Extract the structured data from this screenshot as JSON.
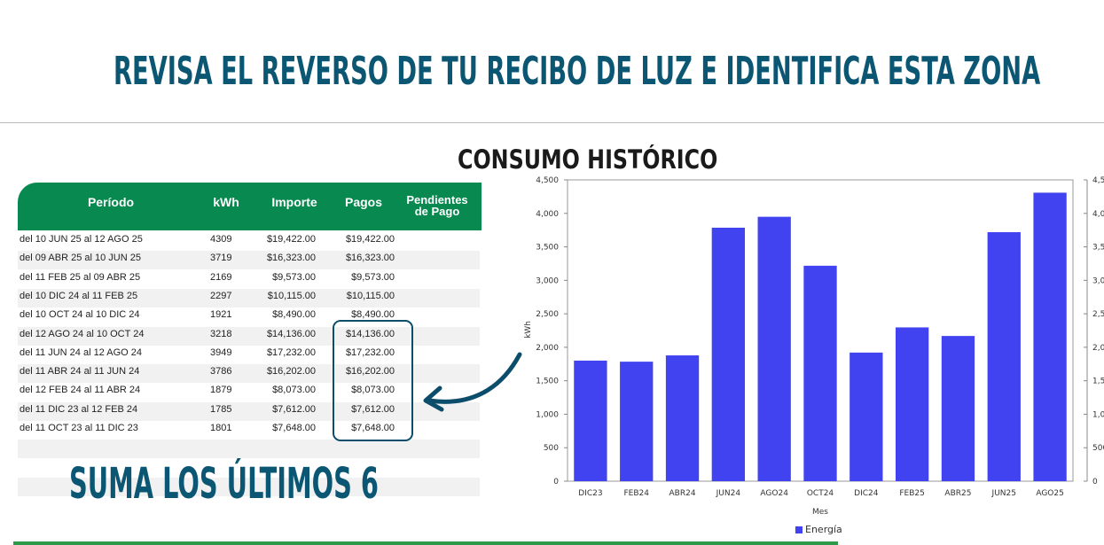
{
  "header": {
    "title": "REVISA EL REVERSO DE TU RECIBO DE LUZ E IDENTIFICA ESTA ZONA",
    "subtitle": "CONSUMO HISTÓRICO"
  },
  "table": {
    "columns": [
      "Período",
      "kWh",
      "Importe",
      "Pagos",
      "Pendientes de Pago"
    ],
    "rows": [
      [
        "del 10 JUN 25 al 12 AGO 25",
        "4309",
        "$19,422.00",
        "$19,422.00"
      ],
      [
        "del 09 ABR 25 al 10 JUN 25",
        "3719",
        "$16,323.00",
        "$16,323.00"
      ],
      [
        "del 11 FEB 25 al 09 ABR 25",
        "2169",
        "$9,573.00",
        "$9,573.00"
      ],
      [
        "del 10 DIC 24 al 11 FEB 25",
        "2297",
        "$10,115.00",
        "$10,115.00"
      ],
      [
        "del 10 OCT 24 al 10 DIC 24",
        "1921",
        "$8,490.00",
        "$8,490.00"
      ],
      [
        "del 12 AGO 24 al 10 OCT 24",
        "3218",
        "$14,136.00",
        "$14,136.00"
      ],
      [
        "del 11 JUN 24 al 12 AGO 24",
        "3949",
        "$17,232.00",
        "$17,232.00"
      ],
      [
        "del 11 ABR 24 al 11 JUN 24",
        "3786",
        "$16,202.00",
        "$16,202.00"
      ],
      [
        "del 12 FEB 24 al 11 ABR 24",
        "1879",
        "$8,073.00",
        "$8,073.00"
      ],
      [
        "del 11 DIC 23 al 12 FEB 24",
        "1785",
        "$7,612.00",
        "$7,612.00"
      ],
      [
        "del 11 OCT 23 al 11 DIC 23",
        "1801",
        "$7,648.00",
        "$7,648.00"
      ]
    ]
  },
  "callout": "SUMA LOS ÚLTIMOS 6",
  "chart_data": {
    "type": "bar",
    "y_label": "kWh",
    "x_label": "Mes",
    "categories": [
      "DIC23",
      "FEB24",
      "ABR24",
      "JUN24",
      "AGO24",
      "OCT24",
      "DIC24",
      "FEB25",
      "ABR25",
      "JUN25",
      "AGO25"
    ],
    "series": [
      {
        "name": "Energía",
        "color": "#4143f0",
        "values": [
          1801,
          1785,
          1879,
          3786,
          3949,
          3218,
          1921,
          2297,
          2169,
          3719,
          4309
        ]
      }
    ],
    "ylim": [
      0,
      4500
    ],
    "yticks": [
      0,
      500,
      {
        "value": 1000,
        "label": "1,000"
      },
      {
        "value": 1500,
        "label": "1,500"
      },
      {
        "value": 2000,
        "label": "2,000"
      },
      {
        "value": 2500,
        "label": "2,500"
      },
      {
        "value": 3000,
        "label": "3,000"
      },
      {
        "value": 3500,
        "label": "3,500"
      },
      {
        "value": 4000,
        "label": "4,000"
      },
      {
        "value": 4500,
        "label": "4,500"
      }
    ],
    "legend": "bottom"
  }
}
